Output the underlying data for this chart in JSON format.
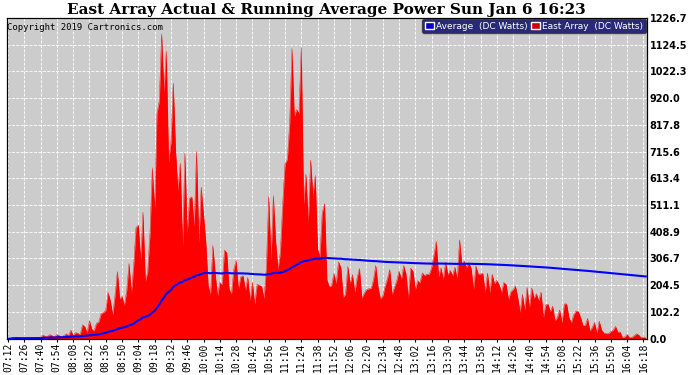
{
  "title": "East Array Actual & Running Average Power Sun Jan 6 16:23",
  "copyright": "Copyright 2019 Cartronics.com",
  "ylabel_right": [
    "0.0",
    "102.2",
    "204.5",
    "306.7",
    "408.9",
    "511.1",
    "613.4",
    "715.6",
    "817.8",
    "920.0",
    "1022.3",
    "1124.5",
    "1226.7"
  ],
  "ymax": 1226.7,
  "ymin": 0.0,
  "legend_labels": [
    "Average  (DC Watts)",
    "East Array  (DC Watts)"
  ],
  "legend_blue_color": "#0000cc",
  "legend_red_color": "#cc0000",
  "bg_color": "#ffffff",
  "plot_bg": "#cccccc",
  "fill_color": "#ff0000",
  "line_color": "#0000ff",
  "title_fontsize": 11,
  "tick_fontsize": 7,
  "copyright_fontsize": 6.5
}
